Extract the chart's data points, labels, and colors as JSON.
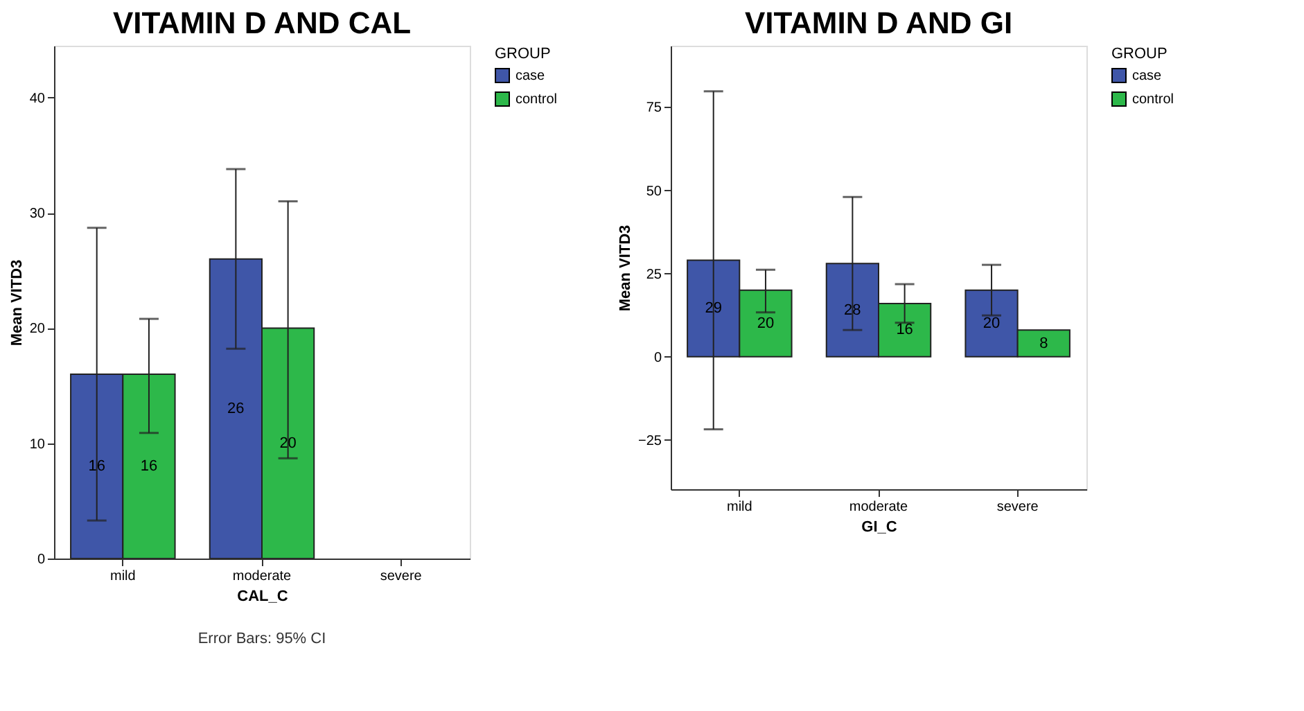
{
  "chart_data": [
    {
      "type": "bar",
      "title": "VITAMIN D AND CAL",
      "xlabel": "CAL_C",
      "ylabel": "Mean VITD3",
      "categories": [
        "mild",
        "moderate",
        "severe"
      ],
      "ylim": [
        0,
        44.5
      ],
      "yticks": [
        0,
        10,
        20,
        30,
        40
      ],
      "grid": false,
      "legend": "right",
      "legend_title": "GROUP",
      "data_labels": true,
      "annotations": [
        "Error Bars: 95% CI"
      ],
      "series": [
        {
          "name": "case",
          "color": "#3f56a8",
          "values": [
            16,
            26,
            null
          ],
          "errors": [
            [
              3.3,
              28.7
            ],
            [
              18.2,
              33.8
            ],
            null
          ]
        },
        {
          "name": "control",
          "color": "#2db84a",
          "values": [
            16,
            20,
            null
          ],
          "errors": [
            [
              10.9,
              20.8
            ],
            [
              8.7,
              31.0
            ],
            null
          ]
        }
      ]
    },
    {
      "type": "bar",
      "title": "VITAMIN D AND GI",
      "xlabel": "GI_C",
      "ylabel": "Mean VITD3",
      "categories": [
        "mild",
        "moderate",
        "severe"
      ],
      "ylim": [
        -39.8,
        93.4
      ],
      "yticks": [
        -25,
        0,
        25,
        50,
        75
      ],
      "grid": false,
      "legend": "right",
      "legend_title": "GROUP",
      "data_labels": true,
      "series": [
        {
          "name": "case",
          "color": "#3f56a8",
          "values": [
            29,
            28,
            20
          ],
          "errors": [
            [
              -21.8,
              79.7
            ],
            [
              8.0,
              48.0
            ],
            [
              12.4,
              27.6
            ]
          ]
        },
        {
          "name": "control",
          "color": "#2db84a",
          "values": [
            20,
            16,
            8
          ],
          "errors": [
            [
              13.3,
              26.1
            ],
            [
              10.2,
              21.8
            ],
            null
          ]
        }
      ]
    }
  ]
}
